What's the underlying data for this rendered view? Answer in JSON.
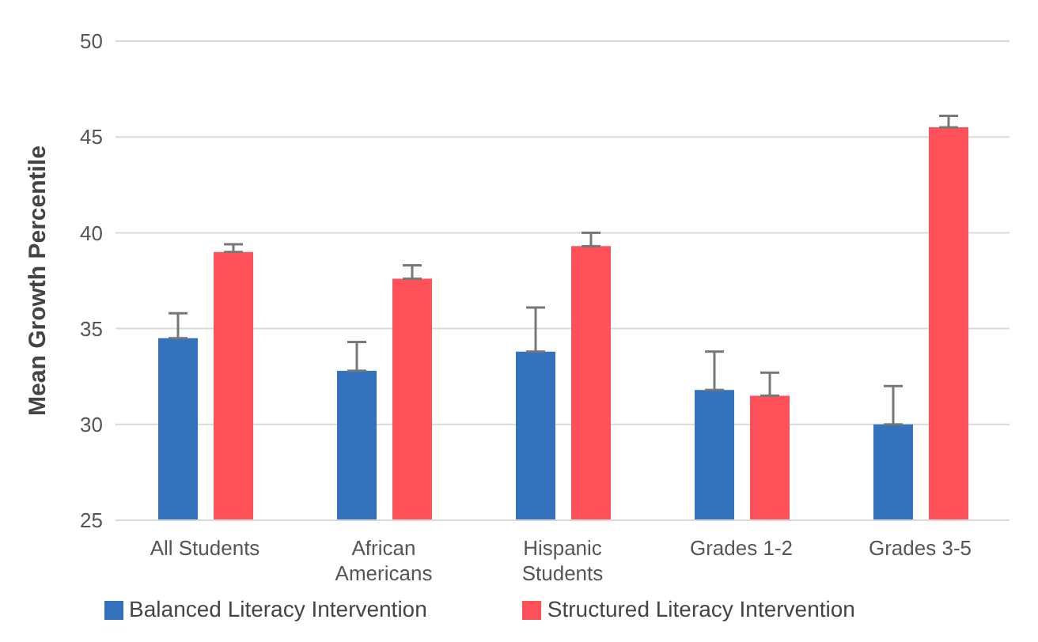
{
  "chart_data": {
    "type": "bar",
    "ylabel": "Mean Growth Percentile",
    "categories": [
      "All Students",
      "African\nAmericans",
      "Hispanic\nStudents",
      "Grades 1-2",
      "Grades 3-5"
    ],
    "series": [
      {
        "name": "Balanced Literacy Intervention",
        "color": "#3472be",
        "values": [
          34.5,
          32.8,
          33.8,
          31.8,
          30.0
        ],
        "errors": [
          [
            34.5,
            35.8
          ],
          [
            32.8,
            34.3
          ],
          [
            33.8,
            36.1
          ],
          [
            31.8,
            33.8
          ],
          [
            30.0,
            32.0
          ]
        ]
      },
      {
        "name": "Structured Literacy Intervention",
        "color": "#fe515a",
        "values": [
          39.0,
          37.6,
          39.3,
          31.5,
          45.5
        ],
        "errors": [
          [
            39.0,
            39.4
          ],
          [
            37.6,
            38.3
          ],
          [
            39.3,
            40.0
          ],
          [
            31.5,
            32.7
          ],
          [
            45.5,
            46.1
          ]
        ]
      }
    ],
    "ylim": [
      25,
      50
    ],
    "yticks": [
      25,
      30,
      35,
      40,
      45,
      50
    ],
    "grid": "y",
    "legend": "bottom"
  }
}
